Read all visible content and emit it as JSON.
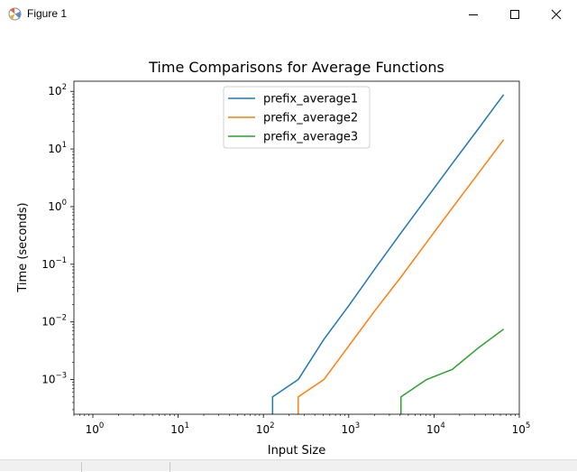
{
  "window": {
    "title": "Figure 1",
    "icons": {
      "app": "matplotlib-icon",
      "minimize": "minimize-icon",
      "maximize": "maximize-icon",
      "close": "close-icon"
    }
  },
  "chart_data": {
    "type": "line",
    "title": "Time Comparisons for Average Functions",
    "xlabel": "Input Size",
    "ylabel": "Time (seconds)",
    "xscale": "log",
    "yscale": "log",
    "xlim": [
      0.6,
      100000
    ],
    "ylim": [
      0.00025,
      150
    ],
    "grid": false,
    "legend": "upper-center",
    "x_ticks": [
      {
        "value": 1,
        "base": "10",
        "exp": "0"
      },
      {
        "value": 10,
        "base": "10",
        "exp": "1"
      },
      {
        "value": 100,
        "base": "10",
        "exp": "2"
      },
      {
        "value": 1000,
        "base": "10",
        "exp": "3"
      },
      {
        "value": 10000,
        "base": "10",
        "exp": "4"
      },
      {
        "value": 100000,
        "base": "10",
        "exp": "5"
      }
    ],
    "y_ticks": [
      {
        "value": 0.001,
        "base": "10",
        "exp": "−3"
      },
      {
        "value": 0.01,
        "base": "10",
        "exp": "−2"
      },
      {
        "value": 0.1,
        "base": "10",
        "exp": "−1"
      },
      {
        "value": 1,
        "base": "10",
        "exp": "0"
      },
      {
        "value": 10,
        "base": "10",
        "exp": "1"
      },
      {
        "value": 100,
        "base": "10",
        "exp": "2"
      }
    ],
    "series": [
      {
        "name": "prefix_average1",
        "color": "#1f77b4",
        "x": [
          1,
          2,
          4,
          8,
          16,
          32,
          64,
          128,
          256,
          512,
          1024,
          2048,
          4096,
          8192,
          16384,
          32768,
          65536
        ],
        "y": [
          0,
          0,
          0,
          0,
          0,
          0,
          0,
          0.0005,
          0.001,
          0.005,
          0.02,
          0.085,
          0.35,
          1.4,
          5.6,
          22,
          88
        ]
      },
      {
        "name": "prefix_average2",
        "color": "#ff7f0e",
        "x": [
          1,
          2,
          4,
          8,
          16,
          32,
          64,
          128,
          256,
          512,
          1024,
          2048,
          4096,
          8192,
          16384,
          32768,
          65536
        ],
        "y": [
          0,
          0,
          0,
          0,
          0,
          0,
          0,
          0,
          0.0005,
          0.001,
          0.004,
          0.016,
          0.06,
          0.24,
          0.95,
          3.7,
          14.5
        ]
      },
      {
        "name": "prefix_average3",
        "color": "#2ca02c",
        "x": [
          1,
          2,
          4,
          8,
          16,
          32,
          64,
          128,
          256,
          512,
          1024,
          2048,
          4096,
          8192,
          16384,
          32768,
          65536
        ],
        "y": [
          0,
          0,
          0,
          0,
          0,
          0,
          0,
          0,
          0,
          0,
          0,
          0,
          0.0005,
          0.001,
          0.0015,
          0.0035,
          0.0075
        ]
      }
    ]
  }
}
